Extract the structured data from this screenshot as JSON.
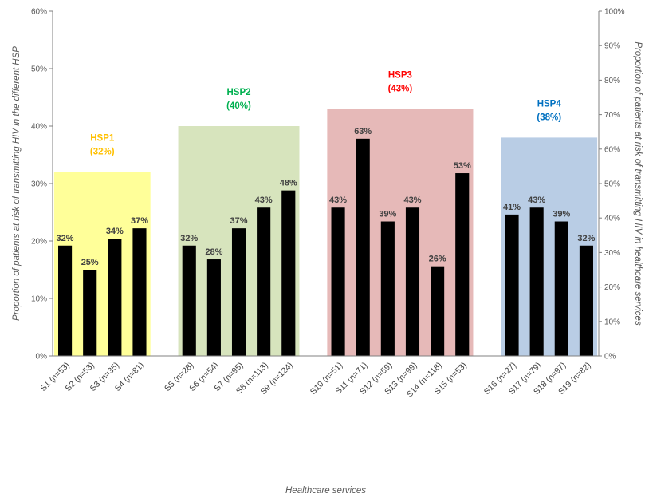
{
  "chart_data": {
    "type": "bar",
    "xlabel": "Healthcare services",
    "ylabel_left": "Proportion of patients at risk of transmitting HIV in the different HSP",
    "ylabel_right": "Proportion of patients at risk of transmitting HIV in healthcare services",
    "ylim_left": [
      0,
      60
    ],
    "ylim_right": [
      0,
      100
    ],
    "yticks_left": [
      "0%",
      "10%",
      "20%",
      "30%",
      "40%",
      "50%",
      "60%"
    ],
    "yticks_right": [
      "0%",
      "10%",
      "20%",
      "30%",
      "40%",
      "50%",
      "60%",
      "70%",
      "80%",
      "90%",
      "100%"
    ],
    "grid": false,
    "groups": [
      {
        "name": "HSP1",
        "value_label": "(32%)",
        "value": 32,
        "color": "#FFFF99",
        "label_color": "#FFC000",
        "bars": [
          {
            "category": "S1 (n=53)",
            "value": 32,
            "label": "32%"
          },
          {
            "category": "S2 (n=53)",
            "value": 25,
            "label": "25%"
          },
          {
            "category": "S3 (n=35)",
            "value": 34,
            "label": "34%"
          },
          {
            "category": "S4 (n=81)",
            "value": 37,
            "label": "37%"
          }
        ]
      },
      {
        "name": "HSP2",
        "value_label": "(40%)",
        "value": 40,
        "color": "#D7E4BD",
        "label_color": "#00B050",
        "bars": [
          {
            "category": "S5 (n=28)",
            "value": 32,
            "label": "32%"
          },
          {
            "category": "S6 (n=54)",
            "value": 28,
            "label": "28%"
          },
          {
            "category": "S7 (n=95)",
            "value": 37,
            "label": "37%"
          },
          {
            "category": "S8 (n=113)",
            "value": 43,
            "label": "43%"
          },
          {
            "category": "S9 (n=124)",
            "value": 48,
            "label": "48%"
          }
        ]
      },
      {
        "name": "HSP3",
        "value_label": "(43%)",
        "value": 43,
        "color": "#E6B9B8",
        "label_color": "#FF0000",
        "bars": [
          {
            "category": "S10 (n=51)",
            "value": 43,
            "label": "43%"
          },
          {
            "category": "S11 (n=71)",
            "value": 63,
            "label": "63%"
          },
          {
            "category": "S12 (n=59)",
            "value": 39,
            "label": "39%"
          },
          {
            "category": "S13 (n=99)",
            "value": 43,
            "label": "43%"
          },
          {
            "category": "S14 (n=118)",
            "value": 26,
            "label": "26%"
          },
          {
            "category": "S15 (n=53)",
            "value": 53,
            "label": "53%"
          }
        ]
      },
      {
        "name": "HSP4",
        "value_label": "(38%)",
        "value": 38,
        "color": "#B9CDE5",
        "label_color": "#0070C0",
        "bars": [
          {
            "category": "S16 (n=27)",
            "value": 41,
            "label": "41%"
          },
          {
            "category": "S17 (n=79)",
            "value": 43,
            "label": "43%"
          },
          {
            "category": "S18 (n=97)",
            "value": 39,
            "label": "39%"
          },
          {
            "category": "S19 (n=82)",
            "value": 32,
            "label": "32%"
          }
        ]
      }
    ],
    "bar_color": "#000000"
  }
}
